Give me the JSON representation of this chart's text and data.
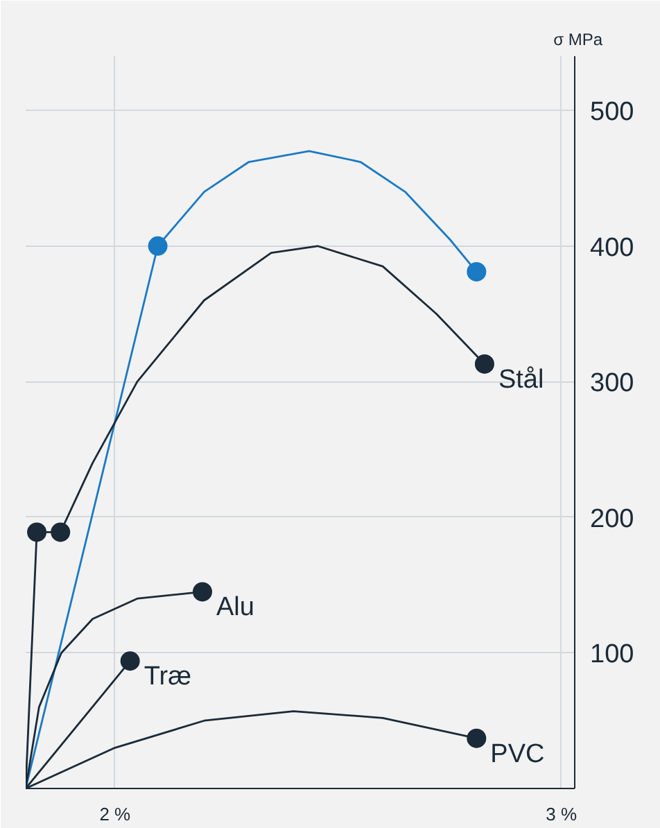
{
  "chart_data": {
    "type": "line",
    "ylabel": "σ MPa",
    "xlim": [
      1.8,
      3.03
    ],
    "ylim": [
      0,
      540
    ],
    "xticks": [
      {
        "value": 2,
        "label": "2 %"
      },
      {
        "value": 3,
        "label": "3 %"
      }
    ],
    "yticks": [
      100,
      200,
      300,
      400,
      500
    ],
    "grid": true,
    "series": [
      {
        "color": "#1a7ac4",
        "x": [
          1.8,
          2.096,
          2.2,
          2.3,
          2.435,
          2.55,
          2.65,
          2.75,
          2.81
        ],
        "values": [
          0,
          400,
          440,
          462,
          470,
          462,
          440,
          405,
          381
        ]
      },
      {
        "name": "Stål",
        "color": "#1b2a38",
        "x": [
          1.8,
          1.825,
          1.878,
          1.95,
          2.05,
          2.2,
          2.35,
          2.454,
          2.6,
          2.72,
          2.828
        ],
        "values": [
          0,
          189,
          189,
          240,
          300,
          360,
          395,
          400,
          385,
          350,
          313
        ]
      },
      {
        "name": "Alu",
        "color": "#1b2a38",
        "x": [
          1.8,
          1.83,
          1.88,
          1.95,
          2.05,
          2.196
        ],
        "values": [
          0,
          60,
          100,
          125,
          140,
          145
        ]
      },
      {
        "name": "Træ",
        "color": "#1b2a38",
        "x": [
          1.8,
          2.034
        ],
        "values": [
          0,
          94
        ]
      },
      {
        "name": "PVC",
        "color": "#1b2a38",
        "x": [
          1.8,
          2.0,
          2.2,
          2.4,
          2.6,
          2.81
        ],
        "values": [
          0,
          30,
          50,
          57,
          52,
          37
        ]
      },
      {
        "type": "scatter",
        "marker": "circle",
        "color": "#1a7ac4",
        "x": [
          2.096,
          2.81
        ],
        "values": [
          400,
          381
        ]
      },
      {
        "type": "scatter",
        "marker": "circle",
        "color": "#1b2a38",
        "x": [
          1.825,
          1.878,
          2.828,
          2.196,
          2.034,
          2.81
        ],
        "values": [
          189,
          189,
          313,
          145,
          94,
          37
        ]
      }
    ]
  }
}
